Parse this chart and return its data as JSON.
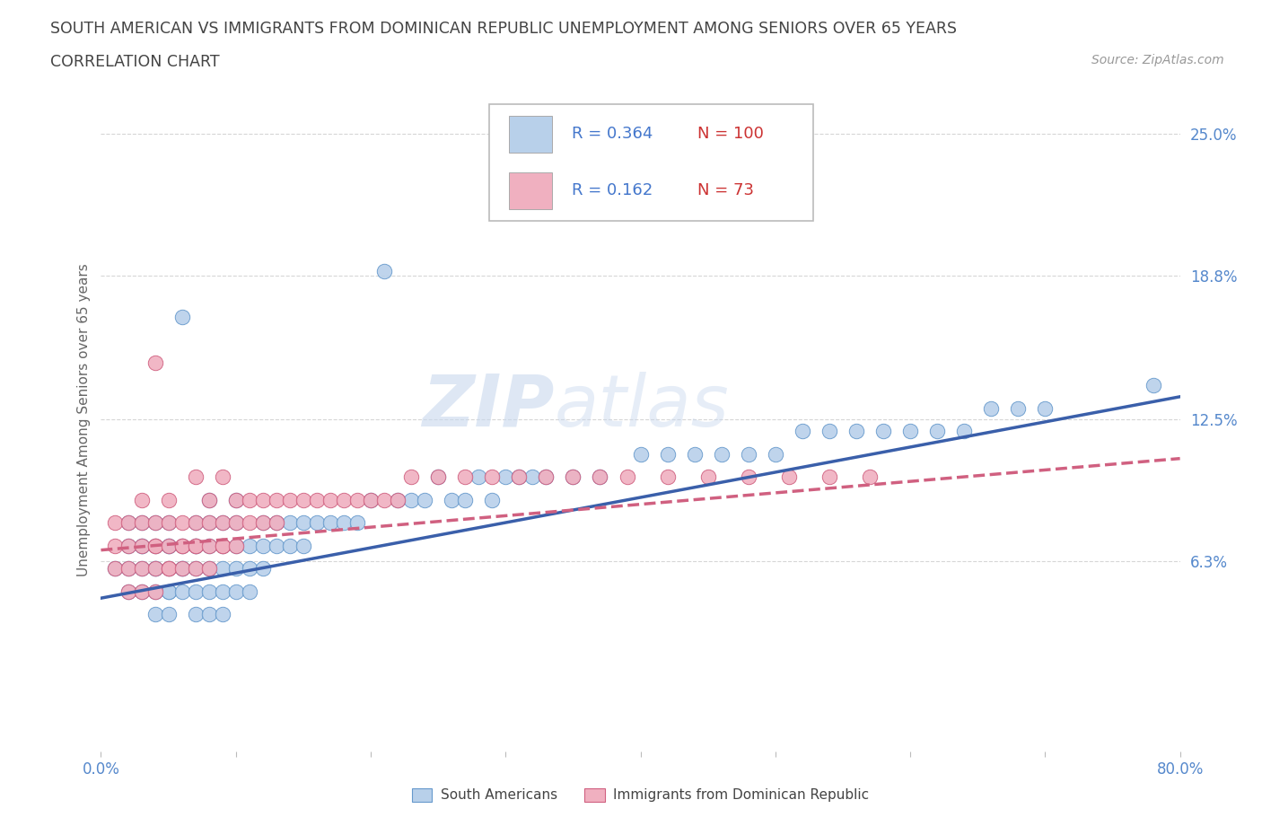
{
  "title_line1": "SOUTH AMERICAN VS IMMIGRANTS FROM DOMINICAN REPUBLIC UNEMPLOYMENT AMONG SENIORS OVER 65 YEARS",
  "title_line2": "CORRELATION CHART",
  "source_text": "Source: ZipAtlas.com",
  "ylabel": "Unemployment Among Seniors over 65 years",
  "xlim": [
    0.0,
    0.8
  ],
  "ylim": [
    -0.02,
    0.27
  ],
  "yticks": [
    0.063,
    0.125,
    0.188,
    0.25
  ],
  "ytick_labels": [
    "6.3%",
    "12.5%",
    "18.8%",
    "25.0%"
  ],
  "xticks": [
    0.0,
    0.1,
    0.2,
    0.3,
    0.4,
    0.5,
    0.6,
    0.7,
    0.8
  ],
  "xtick_labels": [
    "0.0%",
    "",
    "",
    "",
    "",
    "",
    "",
    "",
    "80.0%"
  ],
  "series": [
    {
      "name": "South Americans",
      "fill_color": "#b8d0ea",
      "edge_color": "#6699cc",
      "R": 0.364,
      "N": 100,
      "trend_color": "#3a5faa",
      "trend_style": "solid",
      "trend_x0": 0.0,
      "trend_y0": 0.047,
      "trend_x1": 0.8,
      "trend_y1": 0.135,
      "x": [
        0.01,
        0.02,
        0.02,
        0.02,
        0.02,
        0.03,
        0.03,
        0.03,
        0.03,
        0.03,
        0.04,
        0.04,
        0.04,
        0.04,
        0.04,
        0.04,
        0.05,
        0.05,
        0.05,
        0.05,
        0.05,
        0.05,
        0.05,
        0.06,
        0.06,
        0.06,
        0.06,
        0.06,
        0.07,
        0.07,
        0.07,
        0.07,
        0.07,
        0.07,
        0.08,
        0.08,
        0.08,
        0.08,
        0.08,
        0.08,
        0.09,
        0.09,
        0.09,
        0.09,
        0.09,
        0.1,
        0.1,
        0.1,
        0.1,
        0.1,
        0.11,
        0.11,
        0.11,
        0.12,
        0.12,
        0.12,
        0.13,
        0.13,
        0.14,
        0.14,
        0.15,
        0.15,
        0.16,
        0.17,
        0.18,
        0.19,
        0.2,
        0.21,
        0.22,
        0.23,
        0.24,
        0.25,
        0.26,
        0.27,
        0.28,
        0.29,
        0.3,
        0.31,
        0.32,
        0.33,
        0.35,
        0.37,
        0.38,
        0.4,
        0.42,
        0.44,
        0.46,
        0.48,
        0.5,
        0.52,
        0.54,
        0.56,
        0.58,
        0.6,
        0.62,
        0.64,
        0.66,
        0.68,
        0.7,
        0.78
      ],
      "y": [
        0.06,
        0.05,
        0.06,
        0.07,
        0.08,
        0.05,
        0.06,
        0.07,
        0.07,
        0.08,
        0.04,
        0.05,
        0.06,
        0.06,
        0.07,
        0.08,
        0.04,
        0.05,
        0.05,
        0.06,
        0.07,
        0.07,
        0.08,
        0.05,
        0.06,
        0.06,
        0.07,
        0.17,
        0.04,
        0.05,
        0.06,
        0.07,
        0.07,
        0.08,
        0.04,
        0.05,
        0.06,
        0.07,
        0.08,
        0.09,
        0.04,
        0.05,
        0.06,
        0.07,
        0.08,
        0.05,
        0.06,
        0.07,
        0.08,
        0.09,
        0.05,
        0.06,
        0.07,
        0.06,
        0.07,
        0.08,
        0.07,
        0.08,
        0.07,
        0.08,
        0.07,
        0.08,
        0.08,
        0.08,
        0.08,
        0.08,
        0.09,
        0.19,
        0.09,
        0.09,
        0.09,
        0.1,
        0.09,
        0.09,
        0.1,
        0.09,
        0.1,
        0.1,
        0.1,
        0.1,
        0.1,
        0.1,
        0.23,
        0.11,
        0.11,
        0.11,
        0.11,
        0.11,
        0.11,
        0.12,
        0.12,
        0.12,
        0.12,
        0.12,
        0.12,
        0.12,
        0.13,
        0.13,
        0.13,
        0.14
      ]
    },
    {
      "name": "Immigrants from Dominican Republic",
      "fill_color": "#f0b0c0",
      "edge_color": "#d06080",
      "R": 0.162,
      "N": 73,
      "trend_color": "#d06080",
      "trend_style": "dashed",
      "trend_x0": 0.0,
      "trend_y0": 0.068,
      "trend_x1": 0.8,
      "trend_y1": 0.108,
      "x": [
        0.01,
        0.01,
        0.01,
        0.02,
        0.02,
        0.02,
        0.02,
        0.03,
        0.03,
        0.03,
        0.03,
        0.03,
        0.04,
        0.04,
        0.04,
        0.04,
        0.04,
        0.04,
        0.05,
        0.05,
        0.05,
        0.05,
        0.05,
        0.06,
        0.06,
        0.06,
        0.06,
        0.07,
        0.07,
        0.07,
        0.07,
        0.07,
        0.08,
        0.08,
        0.08,
        0.08,
        0.09,
        0.09,
        0.09,
        0.09,
        0.1,
        0.1,
        0.1,
        0.11,
        0.11,
        0.12,
        0.12,
        0.13,
        0.13,
        0.14,
        0.15,
        0.16,
        0.17,
        0.18,
        0.19,
        0.2,
        0.21,
        0.22,
        0.23,
        0.25,
        0.27,
        0.29,
        0.31,
        0.33,
        0.35,
        0.37,
        0.39,
        0.42,
        0.45,
        0.48,
        0.51,
        0.54,
        0.57
      ],
      "y": [
        0.06,
        0.07,
        0.08,
        0.05,
        0.06,
        0.07,
        0.08,
        0.05,
        0.06,
        0.07,
        0.08,
        0.09,
        0.05,
        0.06,
        0.07,
        0.07,
        0.08,
        0.15,
        0.06,
        0.06,
        0.07,
        0.08,
        0.09,
        0.06,
        0.07,
        0.07,
        0.08,
        0.06,
        0.07,
        0.07,
        0.08,
        0.1,
        0.06,
        0.07,
        0.08,
        0.09,
        0.07,
        0.07,
        0.08,
        0.1,
        0.07,
        0.08,
        0.09,
        0.08,
        0.09,
        0.08,
        0.09,
        0.08,
        0.09,
        0.09,
        0.09,
        0.09,
        0.09,
        0.09,
        0.09,
        0.09,
        0.09,
        0.09,
        0.1,
        0.1,
        0.1,
        0.1,
        0.1,
        0.1,
        0.1,
        0.1,
        0.1,
        0.1,
        0.1,
        0.1,
        0.1,
        0.1,
        0.1
      ]
    }
  ],
  "watermark_zip": "ZIP",
  "watermark_atlas": "atlas",
  "legend_box_colors": [
    "#b8d0ea",
    "#f0b0c0"
  ],
  "legend_R_values": [
    "0.364",
    "0.162"
  ],
  "legend_N_values": [
    "100",
    "73"
  ],
  "grid_color": "#cccccc",
  "background_color": "#ffffff",
  "title_color": "#444444",
  "axis_label_color": "#666666",
  "tick_color": "#5588cc",
  "bottom_legend_labels": [
    "South Americans",
    "Immigrants from Dominican Republic"
  ],
  "bottom_legend_colors": [
    "#b8d0ea",
    "#f0b0c0"
  ],
  "bottom_legend_edge": [
    "#6699cc",
    "#d06080"
  ]
}
